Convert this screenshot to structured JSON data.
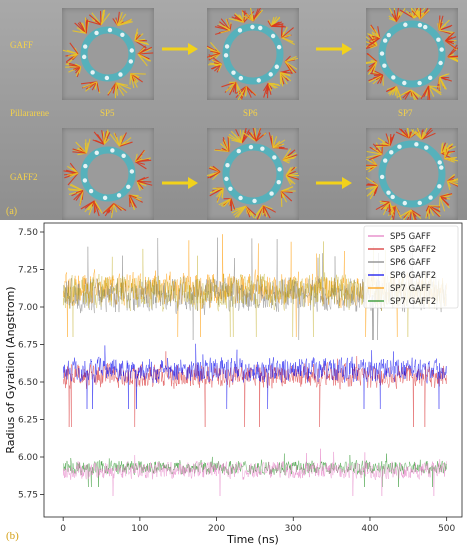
{
  "panel_a": {
    "letter": "(a)",
    "row_labels": {
      "gaff": "GAFF",
      "pillararene": "Pillararene",
      "gaff2": "GAFF2"
    },
    "column_labels": [
      "SP5",
      "SP6",
      "SP7"
    ],
    "colors": {
      "arrow": "#f2d21a",
      "label": "#f5d24a",
      "ring": "#3fb8c6",
      "petal_a": "#e8c52a",
      "petal_b": "#d9381e"
    }
  },
  "panel_b": {
    "letter": "(b)"
  },
  "chart_data": {
    "type": "line",
    "xlabel": "Time (ns)",
    "ylabel": "Radius of Gyration (Angstrom)",
    "xlim": [
      -25,
      520
    ],
    "ylim": [
      5.6,
      7.56
    ],
    "xticks": [
      0,
      100,
      200,
      300,
      400,
      500
    ],
    "yticks": [
      5.75,
      6.0,
      6.25,
      6.5,
      6.75,
      7.0,
      7.25,
      7.5
    ],
    "legend_position": "top-right",
    "grid": false,
    "series": [
      {
        "name": "SP5 GAFF",
        "color": "#e377c2",
        "mean": 5.91,
        "spread": 0.05,
        "range": [
          5.74,
          6.06
        ]
      },
      {
        "name": "SP5 GAFF2",
        "color": "#d62728",
        "mean": 6.54,
        "spread": 0.07,
        "range": [
          6.2,
          6.76
        ]
      },
      {
        "name": "SP6 GAFF",
        "color": "#7f7f7f",
        "mean": 7.08,
        "spread": 0.1,
        "range": [
          6.78,
          7.47
        ]
      },
      {
        "name": "SP6 GAFF2",
        "color": "#0000ee",
        "mean": 6.58,
        "spread": 0.07,
        "range": [
          6.32,
          6.78
        ]
      },
      {
        "name": "SP7 GAFF",
        "color": "#ff9900",
        "mean": 7.12,
        "spread": 0.1,
        "range": [
          6.8,
          7.5
        ]
      },
      {
        "name": "SP7 GAFF2",
        "color": "#1a8a1a",
        "mean": 5.93,
        "spread": 0.04,
        "range": [
          5.8,
          6.05
        ]
      }
    ],
    "overlay_series": {
      "name": "SP6 GAFF",
      "color": "#b5a000",
      "mean": 7.1,
      "spread": 0.1,
      "range": [
        6.8,
        7.48
      ]
    },
    "time_range": [
      0,
      500
    ]
  }
}
